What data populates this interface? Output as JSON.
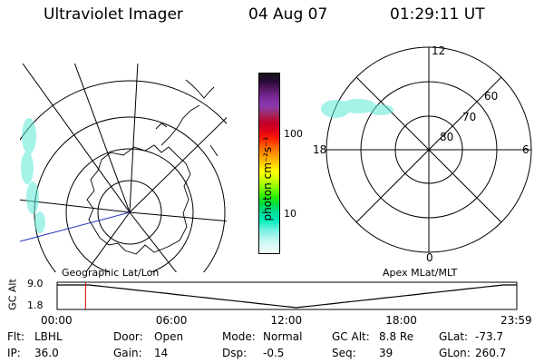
{
  "header": {
    "instrument": "Ultraviolet Imager",
    "date": "04 Aug 07",
    "time": "01:29:11 UT"
  },
  "geo_panel": {
    "label": "Geographic Lat/Lon"
  },
  "apex_panel": {
    "label": "Apex MLat/MLT",
    "mlt_labels": {
      "top": "12",
      "left": "18",
      "right": "6",
      "bottom": "0"
    },
    "mlat_labels": [
      "60",
      "70",
      "80"
    ]
  },
  "colorbar": {
    "unit_label": "photon cm⁻²s⁻¹",
    "ticks": [
      "100",
      "10"
    ],
    "colors": [
      "#141414",
      "#2a0a3a",
      "#5a1a6a",
      "#7a2a9a",
      "#8a3ab0",
      "#a02a60",
      "#c0002a",
      "#e0001a",
      "#ff2000",
      "#ff6600",
      "#ff9900",
      "#ffcc00",
      "#ffff00",
      "#ccff00",
      "#88ff00",
      "#33ee00",
      "#00dd44",
      "#00dd99",
      "#00eebb",
      "#66f0dd",
      "#aaf5ee",
      "#d8faf6",
      "#f2fdfc"
    ]
  },
  "altitude_plot": {
    "axis_label": "GC Alt",
    "y_ticks": [
      "9.0",
      "1.8"
    ],
    "x_ticks": [
      "00:00",
      "06:00",
      "12:00",
      "18:00",
      "23:59"
    ],
    "marker_time": "01:29",
    "marker_color": "#cc0000",
    "line_color": "#000000"
  },
  "status": {
    "row1": [
      {
        "key": "Flt:",
        "value": "LBHL"
      },
      {
        "key": "Door:",
        "value": "Open"
      },
      {
        "key": "Mode:",
        "value": "Normal"
      },
      {
        "key": "GC Alt:",
        "value": "8.8 Re"
      },
      {
        "key": "GLat:",
        "value": "-73.7"
      }
    ],
    "row2": [
      {
        "key": "IP:",
        "value": "36.0"
      },
      {
        "key": "Gain:",
        "value": "14"
      },
      {
        "key": "Dsp:",
        "value": "-0.5"
      },
      {
        "key": "Seq:",
        "value": "39"
      },
      {
        "key": "GLon:",
        "value": "260.7"
      }
    ]
  }
}
